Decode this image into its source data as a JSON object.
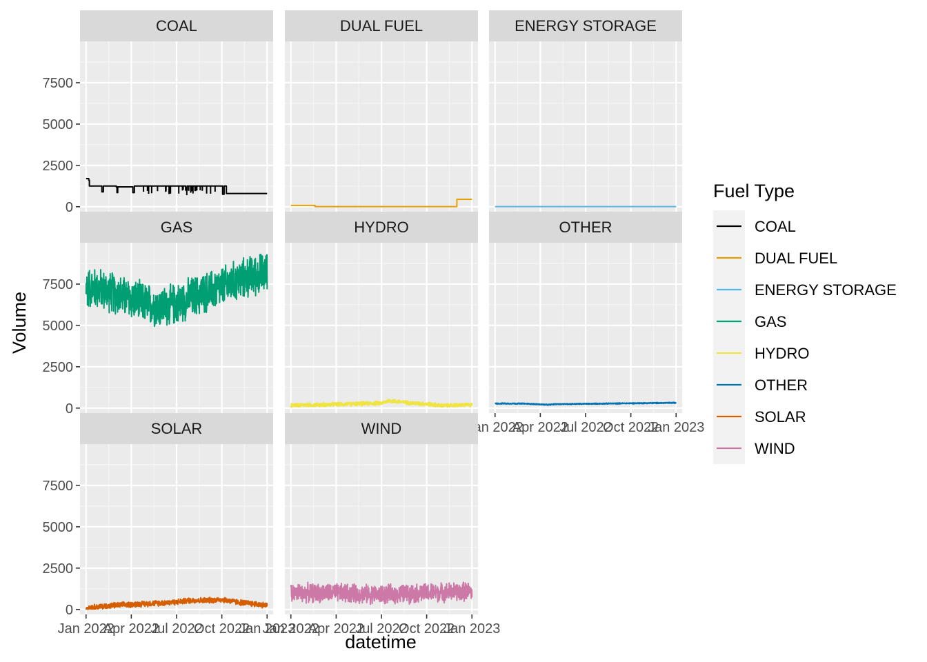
{
  "chart_data": {
    "type": "line",
    "facet_by": "Fuel Type",
    "xlabel": "datetime",
    "ylabel": "Volume",
    "ylim": [
      -300,
      10000
    ],
    "yticks": [
      0,
      2500,
      5000,
      7500
    ],
    "x_ticks": [
      "Jan 2022",
      "Apr 2022",
      "Jul 2022",
      "Oct 2022",
      "Jan 2023"
    ],
    "x_range_months": [
      -0.4,
      12.4
    ],
    "grid": true,
    "legend": {
      "title": "Fuel Type",
      "position": "right"
    },
    "series": [
      {
        "name": "COAL",
        "color": "#000000",
        "profile": "step",
        "points": [
          [
            0,
            1700
          ],
          [
            0.15,
            1700
          ],
          [
            0.18,
            1600
          ],
          [
            0.22,
            1250
          ],
          [
            1.0,
            1250
          ],
          [
            1.05,
            900
          ],
          [
            1.15,
            1250
          ],
          [
            2.0,
            1200
          ],
          [
            2.05,
            850
          ],
          [
            2.1,
            1200
          ],
          [
            3.0,
            1200
          ],
          [
            3.1,
            850
          ],
          [
            3.2,
            1250
          ],
          [
            6.5,
            1250
          ],
          [
            6.6,
            1000
          ],
          [
            6.7,
            1250
          ],
          [
            9.0,
            1250
          ],
          [
            9.05,
            750
          ],
          [
            9.15,
            1250
          ],
          [
            9.3,
            800
          ],
          [
            10.0,
            800
          ],
          [
            10.5,
            800
          ],
          [
            11.0,
            800
          ],
          [
            12.0,
            800
          ]
        ]
      },
      {
        "name": "DUAL FUEL",
        "color": "#E69F00",
        "profile": "step",
        "points": [
          [
            0,
            80
          ],
          [
            1.5,
            80
          ],
          [
            1.6,
            10
          ],
          [
            10.9,
            10
          ],
          [
            11.0,
            450
          ],
          [
            12.0,
            450
          ]
        ]
      },
      {
        "name": "ENERGY STORAGE",
        "color": "#56B4E9",
        "profile": "flat",
        "points": [
          [
            0,
            10
          ],
          [
            12,
            10
          ]
        ]
      },
      {
        "name": "GAS",
        "color": "#009E73",
        "profile": "noisy",
        "points": [
          [
            0,
            7300
          ],
          [
            1,
            7200
          ],
          [
            2,
            6900
          ],
          [
            3,
            6600
          ],
          [
            4,
            6300
          ],
          [
            5,
            6100
          ],
          [
            6,
            6300
          ],
          [
            7,
            6700
          ],
          [
            8,
            7000
          ],
          [
            9,
            7300
          ],
          [
            10,
            7700
          ],
          [
            11,
            8000
          ],
          [
            12,
            8200
          ]
        ]
      },
      {
        "name": "HYDRO",
        "color": "#F0E442",
        "profile": "noisy",
        "points": [
          [
            0,
            180
          ],
          [
            2,
            200
          ],
          [
            4,
            250
          ],
          [
            6,
            300
          ],
          [
            6.5,
            450
          ],
          [
            7,
            400
          ],
          [
            8,
            300
          ],
          [
            9,
            250
          ],
          [
            10,
            150
          ],
          [
            11,
            180
          ],
          [
            12,
            200
          ]
        ]
      },
      {
        "name": "OTHER",
        "color": "#0072B2",
        "profile": "noisy",
        "points": [
          [
            0,
            280
          ],
          [
            2,
            270
          ],
          [
            3.5,
            200
          ],
          [
            4,
            240
          ],
          [
            6,
            260
          ],
          [
            8,
            280
          ],
          [
            10,
            300
          ],
          [
            12,
            320
          ]
        ]
      },
      {
        "name": "SOLAR",
        "color": "#D55E00",
        "profile": "noisy",
        "points": [
          [
            0,
            100
          ],
          [
            2,
            250
          ],
          [
            4,
            350
          ],
          [
            6,
            450
          ],
          [
            7,
            550
          ],
          [
            8,
            550
          ],
          [
            9,
            600
          ],
          [
            10,
            450
          ],
          [
            11,
            350
          ],
          [
            12,
            250
          ]
        ]
      },
      {
        "name": "WIND",
        "color": "#CC79A7",
        "profile": "noisy",
        "points": [
          [
            0,
            1000
          ],
          [
            3,
            1000
          ],
          [
            6,
            900
          ],
          [
            9,
            1000
          ],
          [
            12,
            1100
          ]
        ]
      }
    ]
  }
}
